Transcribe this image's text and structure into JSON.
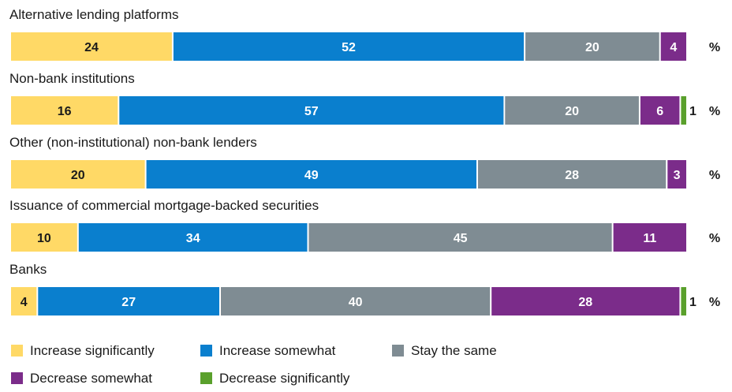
{
  "chart_data": {
    "type": "bar",
    "orientation": "horizontal",
    "stacked": true,
    "unit": "%",
    "categories": [
      "Alternative lending platforms",
      "Non-bank institutions",
      "Other (non-institutional) non-bank lenders",
      "Issuance of commercial mortgage-backed securities",
      "Banks"
    ],
    "series": [
      {
        "name": "Increase significantly",
        "color": "#ffd966",
        "label_color": "#1a1a1a",
        "values": [
          24,
          16,
          20,
          10,
          4
        ]
      },
      {
        "name": "Increase somewhat",
        "color": "#0a7fce",
        "label_color": "#ffffff",
        "values": [
          52,
          57,
          49,
          34,
          27
        ]
      },
      {
        "name": "Stay the same",
        "color": "#7f8c93",
        "label_color": "#ffffff",
        "values": [
          20,
          20,
          28,
          45,
          40
        ]
      },
      {
        "name": "Decrease somewhat",
        "color": "#7b2c8a",
        "label_color": "#ffffff",
        "values": [
          4,
          6,
          3,
          11,
          28
        ]
      },
      {
        "name": "Decrease significantly",
        "color": "#5aa02c",
        "label_color": "#1a1a1a",
        "values": [
          0,
          1,
          0,
          0,
          1
        ]
      }
    ],
    "outside_labels": [
      null,
      "1",
      null,
      null,
      "1"
    ],
    "xlim": [
      0,
      100
    ],
    "grid": false,
    "legend_position": "bottom",
    "title": "",
    "xlabel": "",
    "ylabel": ""
  }
}
